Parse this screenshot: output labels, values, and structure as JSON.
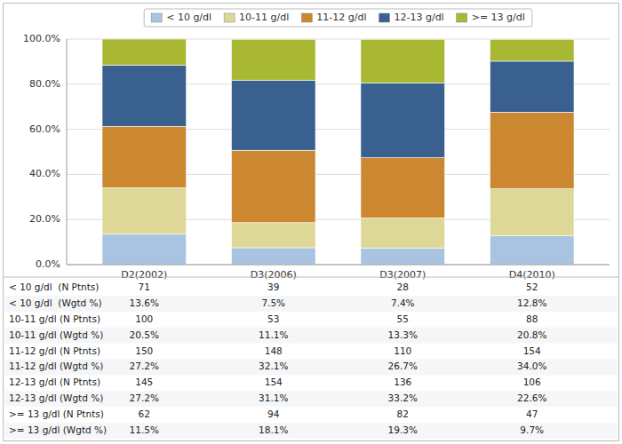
{
  "chart_data": {
    "type": "bar",
    "stacked": true,
    "grid": true,
    "legend": "top",
    "categories": [
      "D2(2002)",
      "D3(2006)",
      "D3(2007)",
      "D4(2010)"
    ],
    "series": [
      {
        "name": "< 10 g/dl",
        "color": "#a8c4e0",
        "values": [
          13.6,
          7.5,
          7.4,
          12.8
        ]
      },
      {
        "name": "10-11 g/dl",
        "color": "#ddd898",
        "values": [
          20.5,
          11.1,
          13.3,
          20.8
        ]
      },
      {
        "name": "11-12 g/dl",
        "color": "#cc8830",
        "values": [
          27.2,
          32.1,
          26.7,
          34.0
        ]
      },
      {
        "name": "12-13 g/dl",
        "color": "#3a6090",
        "values": [
          27.2,
          31.1,
          33.2,
          22.6
        ]
      },
      {
        "name": ">= 13 g/dl",
        "color": "#a8b832",
        "values": [
          11.5,
          18.1,
          19.3,
          9.7
        ]
      }
    ],
    "ylim": [
      0,
      100
    ],
    "yticks": [
      {
        "value": 0,
        "label": "0.0%"
      },
      {
        "value": 20,
        "label": "20.0%"
      },
      {
        "value": 40,
        "label": "40.0%"
      },
      {
        "value": 60,
        "label": "60.0%"
      },
      {
        "value": 80,
        "label": "80.0%"
      },
      {
        "value": 100,
        "label": "100.0%"
      }
    ],
    "table": [
      {
        "name": "< 10 g/dl  (N Ptnts)",
        "values": [
          71,
          39,
          28,
          52
        ]
      },
      {
        "name": "< 10 g/dl  (Wgtd %)",
        "values": [
          13.6,
          7.5,
          7.4,
          12.8
        ],
        "value_labels": [
          "13.6%",
          "7.5%",
          "7.4%",
          "12.8%"
        ]
      },
      {
        "name": "10-11 g/dl (N Ptnts)",
        "values": [
          100,
          53,
          55,
          88
        ]
      },
      {
        "name": "10-11 g/dl (Wgtd %)",
        "values": [
          20.5,
          11.1,
          13.3,
          20.8
        ],
        "value_labels": [
          "20.5%",
          "11.1%",
          "13.3%",
          "20.8%"
        ]
      },
      {
        "name": "11-12 g/dl (N Ptnts)",
        "values": [
          150,
          148,
          110,
          154
        ]
      },
      {
        "name": "11-12 g/dl (Wgtd %)",
        "values": [
          27.2,
          32.1,
          26.7,
          34.0
        ],
        "value_labels": [
          "27.2%",
          "32.1%",
          "26.7%",
          "34.0%"
        ]
      },
      {
        "name": "12-13 g/dl (N Ptnts)",
        "values": [
          145,
          154,
          136,
          106
        ]
      },
      {
        "name": "12-13 g/dl (Wgtd %)",
        "values": [
          27.2,
          31.1,
          33.2,
          22.6
        ],
        "value_labels": [
          "27.2%",
          "31.1%",
          "33.2%",
          "22.6%"
        ]
      },
      {
        "name": ">= 13 g/dl (N Ptnts)",
        "values": [
          62,
          94,
          82,
          47
        ]
      },
      {
        "name": ">= 13 g/dl (Wgtd %)",
        "values": [
          11.5,
          18.1,
          19.3,
          9.7
        ],
        "value_labels": [
          "11.5%",
          "18.1%",
          "19.3%",
          "9.7%"
        ]
      }
    ]
  }
}
